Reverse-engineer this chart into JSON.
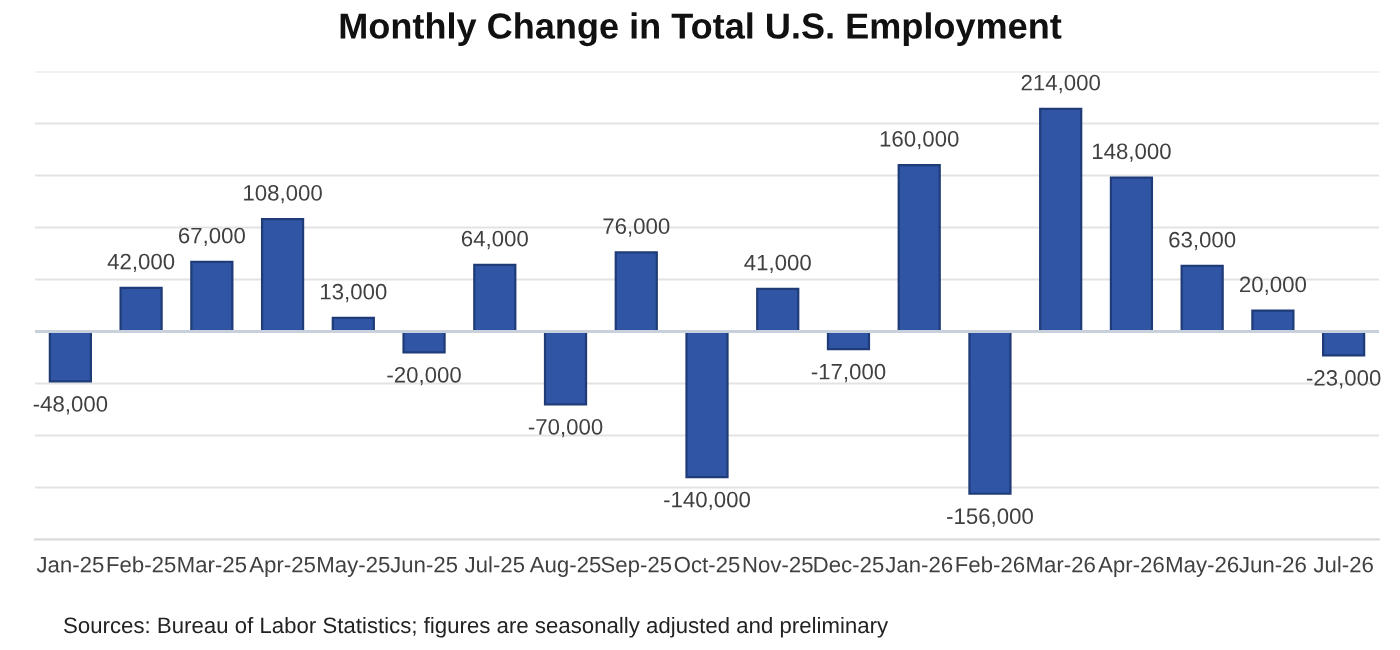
{
  "chart_data": {
    "type": "bar",
    "title": "Monthly Change in Total U.S. Employment",
    "categories": [
      "Jan-25",
      "Feb-25",
      "Mar-25",
      "Apr-25",
      "May-25",
      "Jun-25",
      "Jul-25",
      "Aug-25",
      "Sep-25",
      "Oct-25",
      "Nov-25",
      "Dec-25",
      "Jan-26",
      "Feb-26",
      "Mar-26",
      "Apr-26",
      "May-26",
      "Jun-26",
      "Jul-26"
    ],
    "values": [
      -48000,
      42000,
      67000,
      108000,
      13000,
      -20000,
      64000,
      -70000,
      76000,
      -140000,
      41000,
      -17000,
      160000,
      -156000,
      214000,
      148000,
      63000,
      20000,
      -23000
    ],
    "value_labels": [
      "-48,000",
      "42,000",
      "67,000",
      "108,000",
      "13,000",
      "-20,000",
      "64,000",
      "-70,000",
      "76,000",
      "-140,000",
      "41,000",
      "-17,000",
      "160,000",
      "-156,000",
      "214,000",
      "148,000",
      "63,000",
      "20,000",
      "-23,000"
    ],
    "color": "#2f55a4",
    "ylim": [
      -200000,
      250000
    ],
    "yticks": [
      {
        "value": -200000,
        "label": null
      },
      {
        "value": -150000,
        "label": null
      },
      {
        "value": -100000,
        "label": null
      },
      {
        "value": -50000,
        "label": null
      },
      {
        "value": 0,
        "label": null
      },
      {
        "value": 50000,
        "label": null
      },
      {
        "value": 100000,
        "label": null
      },
      {
        "value": 150000,
        "label": null
      },
      {
        "value": 200000,
        "label": null
      },
      {
        "value": 250000,
        "label": null
      }
    ],
    "grid": "y",
    "annotations": [
      "Sources: Bureau of Labor Statistics; figures are seasonally adjusted and preliminary"
    ]
  }
}
